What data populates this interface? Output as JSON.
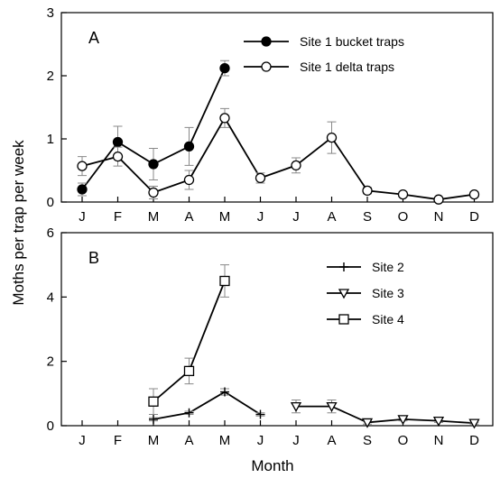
{
  "chart_data": [
    {
      "type": "line",
      "panel_label": "A",
      "categories": [
        "J",
        "F",
        "M",
        "A",
        "M",
        "J",
        "J",
        "A",
        "S",
        "O",
        "N",
        "D"
      ],
      "ylim": [
        0,
        3
      ],
      "yticks": [
        "0",
        "1",
        "2",
        "3"
      ],
      "series": [
        {
          "name": "Site 1 bucket traps",
          "marker": "filled-circle",
          "values": [
            0.2,
            0.95,
            0.6,
            0.88,
            2.12,
            null,
            null,
            null,
            null,
            null,
            null,
            null
          ],
          "error": [
            0.1,
            0.25,
            0.25,
            0.3,
            0.12,
            null,
            null,
            null,
            null,
            null,
            null,
            null
          ]
        },
        {
          "name": "Site 1 delta traps",
          "marker": "open-circle",
          "values": [
            0.57,
            0.72,
            0.15,
            0.35,
            1.33,
            0.38,
            0.58,
            1.02,
            0.18,
            0.12,
            0.04,
            0.12
          ],
          "error": [
            0.15,
            0.15,
            0.1,
            0.15,
            0.15,
            0.08,
            0.12,
            0.25,
            0.05,
            0.04,
            0.03,
            0.04
          ]
        }
      ]
    },
    {
      "type": "line",
      "panel_label": "B",
      "categories": [
        "J",
        "F",
        "M",
        "A",
        "M",
        "J",
        "J",
        "A",
        "S",
        "O",
        "N",
        "D"
      ],
      "ylim": [
        0,
        6
      ],
      "yticks": [
        "0",
        "2",
        "4",
        "6"
      ],
      "series": [
        {
          "name": "Site 2",
          "marker": "plus",
          "values": [
            null,
            null,
            0.2,
            0.4,
            1.05,
            0.35,
            null,
            null,
            null,
            null,
            null,
            null
          ],
          "error": [
            null,
            null,
            0.05,
            0.05,
            0.1,
            0.05,
            null,
            null,
            null,
            null,
            null,
            null
          ]
        },
        {
          "name": "Site 3",
          "marker": "open-triangle-down",
          "values": [
            null,
            null,
            null,
            null,
            null,
            null,
            0.6,
            0.6,
            0.1,
            0.2,
            0.15,
            0.08
          ],
          "error": [
            null,
            null,
            null,
            null,
            null,
            null,
            0.2,
            0.2,
            0.05,
            0.05,
            0.05,
            0.03
          ]
        },
        {
          "name": "Site 4",
          "marker": "open-square",
          "values": [
            null,
            null,
            0.75,
            1.7,
            4.5,
            null,
            null,
            null,
            null,
            null,
            null,
            null
          ],
          "error": [
            null,
            null,
            0.4,
            0.4,
            0.5,
            null,
            null,
            null,
            null,
            null,
            null,
            null
          ]
        }
      ]
    }
  ],
  "ylabel": "Moths per trap per week",
  "xlabel": "Month"
}
